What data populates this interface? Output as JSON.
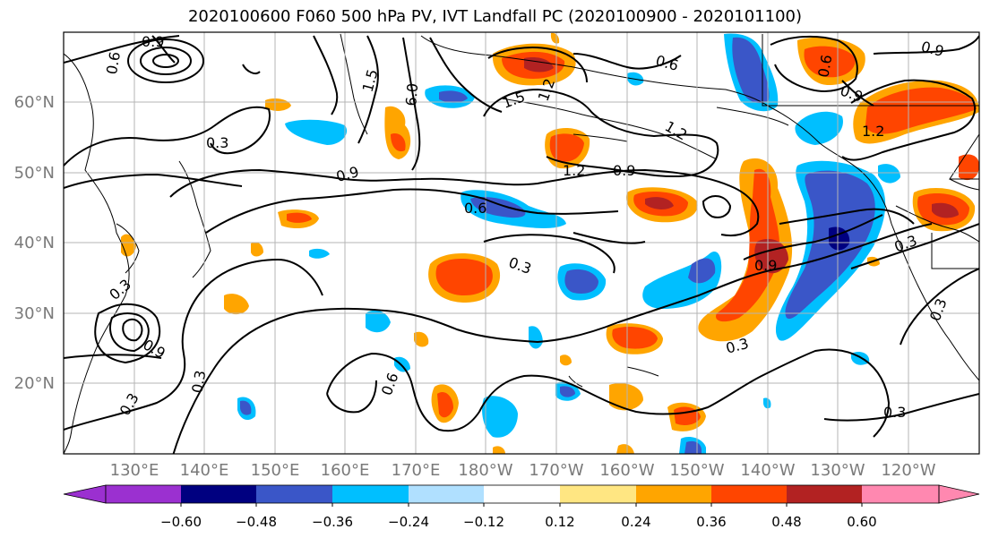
{
  "title": "2020100600 F060 500 hPa PV, IVT Landfall PC (2020100900 - 2020101100)",
  "lat_labels": [
    "60°N",
    "50°N",
    "40°N",
    "30°N",
    "20°N"
  ],
  "lon_labels": [
    "130°E",
    "140°E",
    "150°E",
    "160°E",
    "170°E",
    "180°W",
    "170°W",
    "160°W",
    "150°W",
    "140°W",
    "130°W",
    "120°W"
  ],
  "colorbar": {
    "tick_labels": [
      "−0.60",
      "−0.48",
      "−0.36",
      "−0.24",
      "−0.12",
      "0.12",
      "0.24",
      "0.36",
      "0.48",
      "0.60"
    ],
    "colors": [
      "#9b30d0",
      "#000080",
      "#3a56c8",
      "#00bfff",
      "#b0e0ff",
      "#ffffff",
      "#ffe682",
      "#ffa500",
      "#ff4500",
      "#b22222",
      "#ff88b0"
    ]
  },
  "contour_labels": [
    "0.9",
    "0.6",
    "0.3",
    "1.5",
    "6.0",
    "1.5",
    "1.2",
    "0.6",
    "0.9",
    "0.9",
    "1.2",
    "1.2",
    "0.9",
    "0.6",
    "0.3",
    "0.9",
    "0.3",
    "0.3",
    "0.6",
    "0.3",
    "0.3",
    "0.3",
    "0.3",
    "0.9",
    "1.2",
    "0.6",
    "0.9",
    "0.3"
  ]
}
